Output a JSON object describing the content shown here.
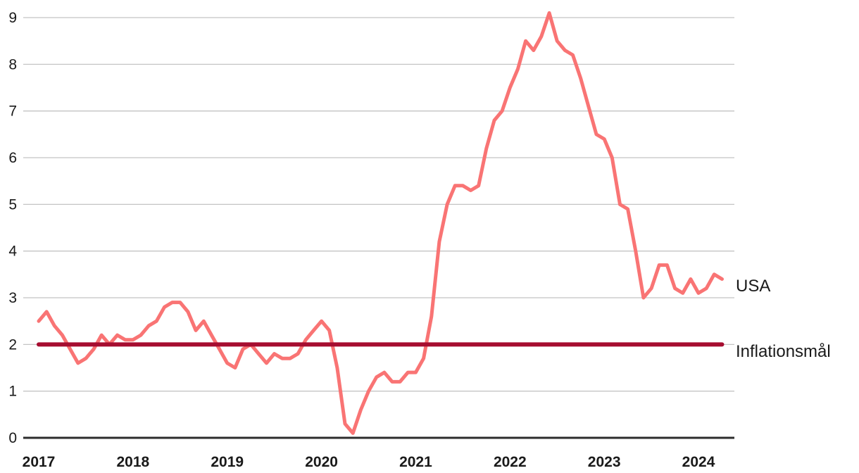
{
  "colors": {
    "usa_line": "#f97474",
    "target_line": "#a60d30",
    "gridline": "#c4c4c4",
    "zero_axis": "#2d2d2d",
    "text": "#1a1a1a"
  },
  "chart_data": {
    "type": "line",
    "title": "",
    "xlabel": "",
    "ylabel": "",
    "grid": "horizontal",
    "legend_position": "right-end-of-line",
    "ylim": [
      0,
      9.3
    ],
    "y_ticks": [
      0,
      1,
      2,
      3,
      4,
      5,
      6,
      7,
      8,
      9
    ],
    "x_tick_labels": [
      "2017",
      "2018",
      "2019",
      "2020",
      "2021",
      "2022",
      "2023",
      "2024"
    ],
    "x_start": "2017-01",
    "x_end": "2024-04",
    "frequency": "monthly",
    "series": [
      {
        "name": "USA",
        "type": "line",
        "color": "#f97474",
        "values": [
          2.5,
          2.7,
          2.4,
          2.2,
          1.9,
          1.6,
          1.7,
          1.9,
          2.2,
          2.0,
          2.2,
          2.1,
          2.1,
          2.2,
          2.4,
          2.5,
          2.8,
          2.9,
          2.9,
          2.7,
          2.3,
          2.5,
          2.2,
          1.9,
          1.6,
          1.5,
          1.9,
          2.0,
          1.8,
          1.6,
          1.8,
          1.7,
          1.7,
          1.8,
          2.1,
          2.3,
          2.5,
          2.3,
          1.5,
          0.3,
          0.1,
          0.6,
          1.0,
          1.3,
          1.4,
          1.2,
          1.2,
          1.4,
          1.4,
          1.7,
          2.6,
          4.2,
          5.0,
          5.4,
          5.4,
          5.3,
          5.4,
          6.2,
          6.8,
          7.0,
          7.5,
          7.9,
          8.5,
          8.3,
          8.6,
          9.1,
          8.5,
          8.3,
          8.2,
          7.7,
          7.1,
          6.5,
          6.4,
          6.0,
          5.0,
          4.9,
          4.0,
          3.0,
          3.2,
          3.7,
          3.7,
          3.2,
          3.1,
          3.4,
          3.1,
          3.2,
          3.5,
          3.4
        ]
      },
      {
        "name": "Inflationsmål",
        "type": "constant-line",
        "color": "#a60d30",
        "value": 2.0
      }
    ]
  }
}
